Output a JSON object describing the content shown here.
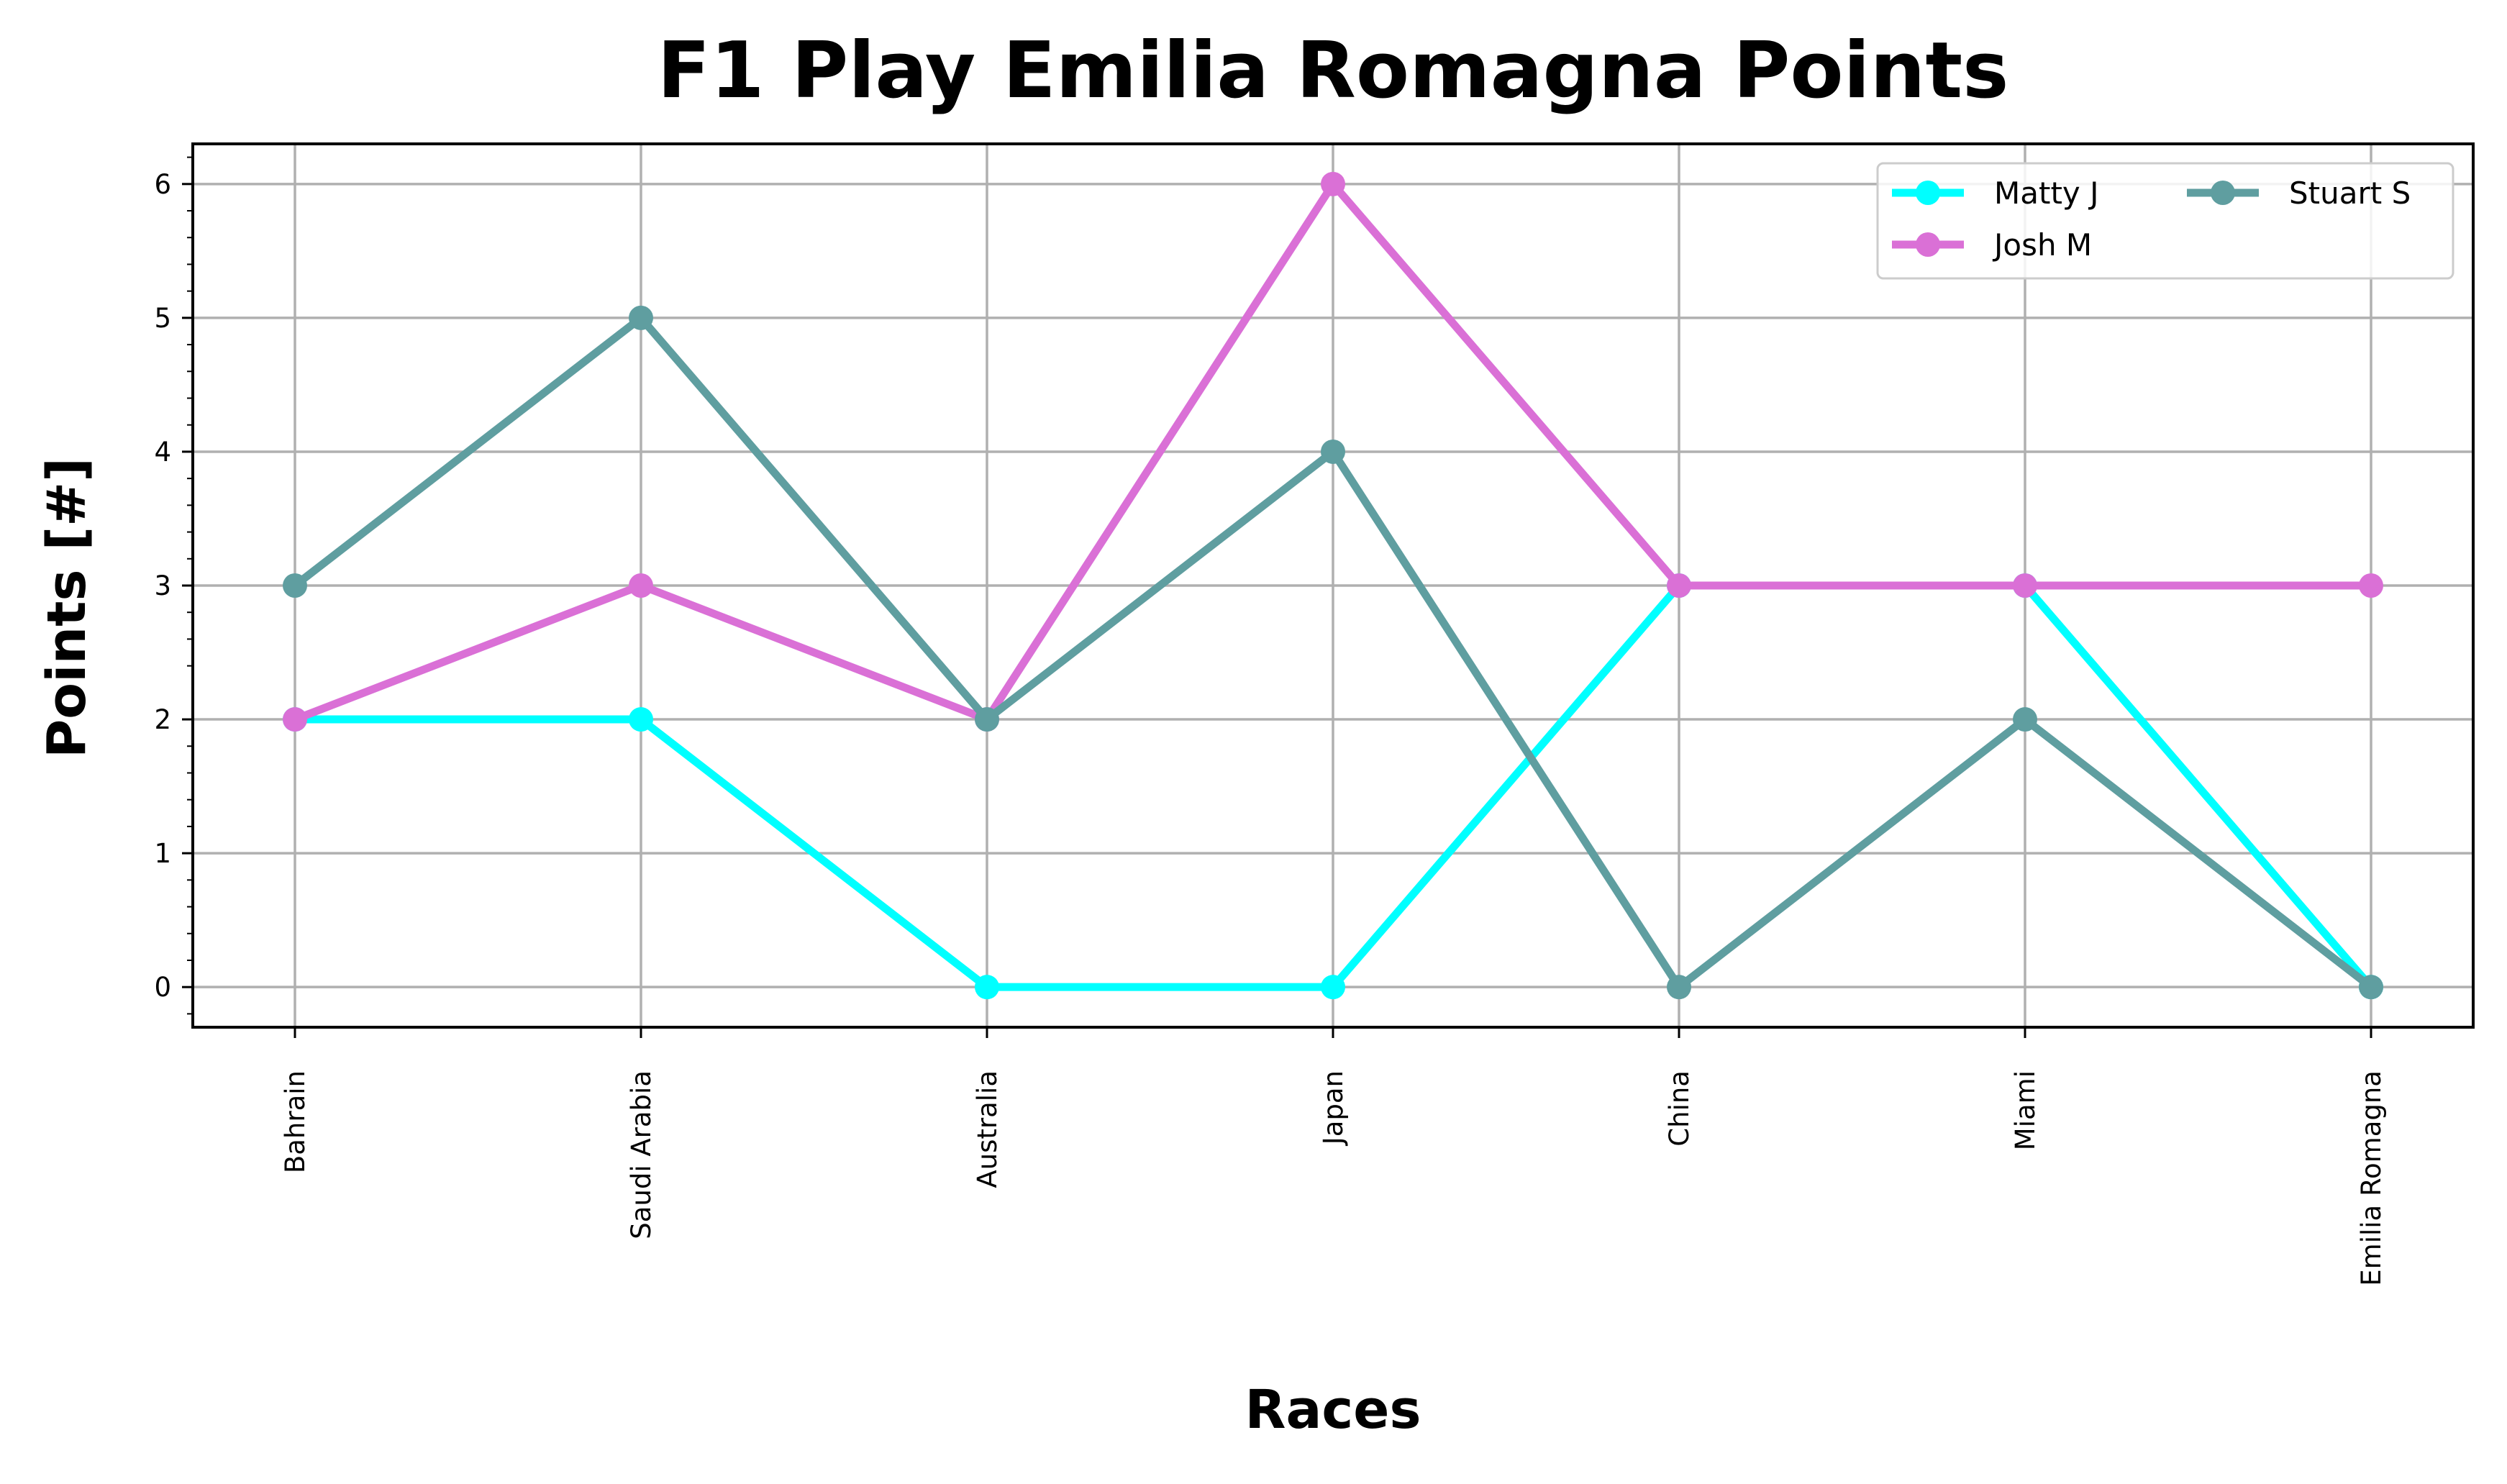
{
  "chart_data": {
    "type": "line",
    "title": "F1 Play Emilia Romagna Points",
    "xlabel": "Races",
    "ylabel": "Points [#]",
    "categories": [
      "Bahrain",
      "Saudi Arabia",
      "Australia",
      "Japan",
      "China",
      "Miami",
      "Emilia Romagna"
    ],
    "ylim": [
      -0.3,
      6.3
    ],
    "yticks": [
      0,
      1,
      2,
      3,
      4,
      5,
      6
    ],
    "grid": true,
    "legend_position": "top-right",
    "series": [
      {
        "name": "Matty J",
        "color": "#00ffff",
        "values": [
          2,
          2,
          0,
          0,
          3,
          3,
          0
        ]
      },
      {
        "name": "Josh M",
        "color": "#da70d6",
        "values": [
          2,
          3,
          2,
          6,
          3,
          3,
          3
        ]
      },
      {
        "name": "Stuart S",
        "color": "#5f9ea0",
        "values": [
          3,
          5,
          2,
          4,
          0,
          2,
          0
        ]
      }
    ]
  }
}
